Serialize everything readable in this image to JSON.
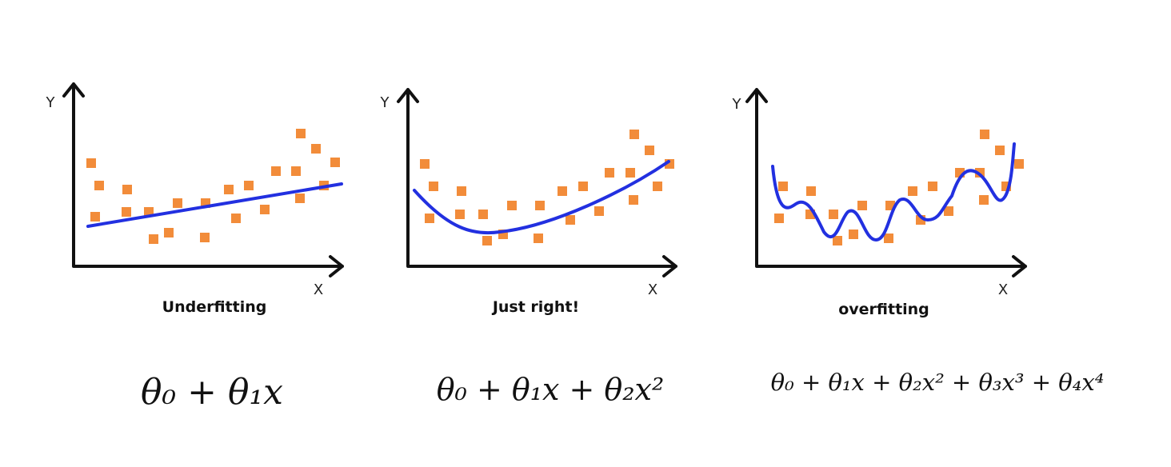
{
  "panels": [
    {
      "y_label": "Y",
      "x_label": "X",
      "caption": "Underfitting",
      "formula": "θ₀ + θ₁x"
    },
    {
      "y_label": "Y",
      "x_label": "X",
      "caption": "Just right!",
      "formula": "θ₀ + θ₁x + θ₂x²"
    },
    {
      "y_label": "Y",
      "x_label": "X",
      "caption": "overfitting",
      "formula": "θ₀ + θ₁x + θ₂x² + θ₃x³ + θ₄x⁴"
    }
  ]
}
